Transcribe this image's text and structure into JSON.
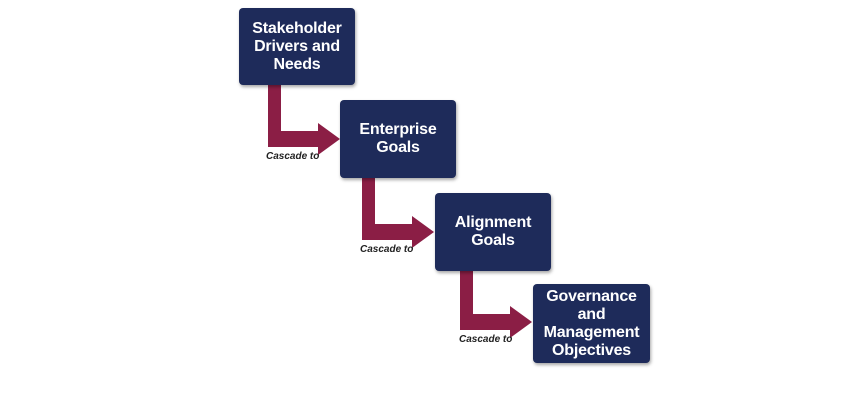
{
  "colors": {
    "box_fill": "#1e2b5a",
    "box_text": "#ffffff",
    "arrow": "#8b1e45",
    "label_text": "#222222",
    "background": "#ffffff"
  },
  "steps": [
    {
      "label": "Stakeholder\nDrivers and\nNeeds"
    },
    {
      "label": "Enterprise\nGoals"
    },
    {
      "label": "Alignment\nGoals"
    },
    {
      "label": "Governance\nand\nManagement\nObjectives"
    }
  ],
  "connectors": [
    {
      "label": "Cascade to",
      "icon": "elbow-arrow-icon"
    },
    {
      "label": "Cascade to",
      "icon": "elbow-arrow-icon"
    },
    {
      "label": "Cascade to",
      "icon": "elbow-arrow-icon"
    }
  ]
}
